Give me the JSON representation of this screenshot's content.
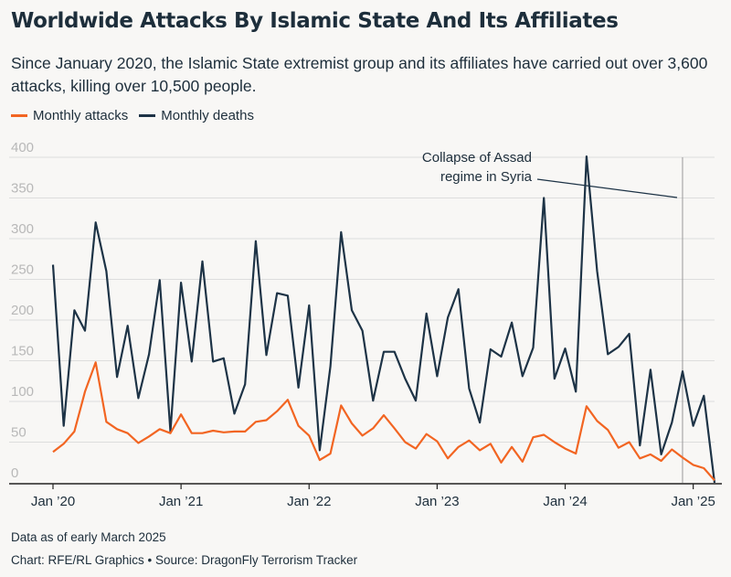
{
  "title": "Worldwide Attacks By Islamic State And Its Affiliates",
  "subtitle": "Since January 2020, the Islamic State extremist group and its affiliates have carried out over 3,600 attacks, killing over 10,500 people.",
  "note": "Data as of early March 2025",
  "credit": "Chart: RFE/RL Graphics • Source: DragonFly Terrorism Tracker",
  "colors": {
    "attacks": "#f26522",
    "deaths": "#1d3346",
    "grid": "#dddddd",
    "axis": "#222222",
    "tick_text": "#b8b8b8",
    "annotation_line": "#999999"
  },
  "chart_data": {
    "type": "line",
    "x_start": "2020-01",
    "x_end": "2025-03",
    "ylim": [
      0,
      400
    ],
    "yticks": [
      0,
      50,
      100,
      150,
      200,
      250,
      300,
      350,
      400
    ],
    "grid": true,
    "legend_position": "top-left",
    "xticks": [
      {
        "x": "2020-01",
        "label": "Jan ’20"
      },
      {
        "x": "2021-01",
        "label": "Jan ’21"
      },
      {
        "x": "2022-01",
        "label": "Jan ’22"
      },
      {
        "x": "2023-01",
        "label": "Jan ’23"
      },
      {
        "x": "2024-01",
        "label": "Jan ’24"
      },
      {
        "x": "2025-01",
        "label": "Jan ’25"
      }
    ],
    "series": [
      {
        "name": "Monthly attacks",
        "color": "#f26522",
        "values": [
          38,
          48,
          63,
          112,
          148,
          75,
          66,
          61,
          49,
          57,
          66,
          61,
          84,
          61,
          61,
          64,
          62,
          63,
          63,
          75,
          77,
          88,
          102,
          70,
          58,
          28,
          36,
          95,
          73,
          58,
          67,
          83,
          67,
          50,
          42,
          60,
          51,
          30,
          44,
          52,
          40,
          48,
          25,
          44,
          26,
          56,
          59,
          50,
          42,
          36,
          94,
          76,
          65,
          43,
          50,
          30,
          35,
          27,
          41,
          31,
          22,
          18,
          3
        ]
      },
      {
        "name": "Monthly deaths",
        "color": "#1d3346",
        "values": [
          268,
          70,
          212,
          187,
          320,
          260,
          130,
          193,
          104,
          158,
          249,
          63,
          246,
          149,
          272,
          149,
          153,
          85,
          121,
          297,
          157,
          233,
          230,
          117,
          218,
          40,
          143,
          308,
          212,
          187,
          101,
          161,
          161,
          128,
          101,
          208,
          131,
          203,
          238,
          116,
          74,
          164,
          155,
          197,
          131,
          166,
          350,
          128,
          165,
          112,
          401,
          260,
          158,
          167,
          183,
          46,
          139,
          35,
          74,
          137,
          70,
          107,
          0
        ]
      }
    ],
    "annotations": [
      {
        "text_lines": [
          "Collapse of Assad",
          "regime in Syria"
        ],
        "x": "2024-12"
      }
    ]
  }
}
